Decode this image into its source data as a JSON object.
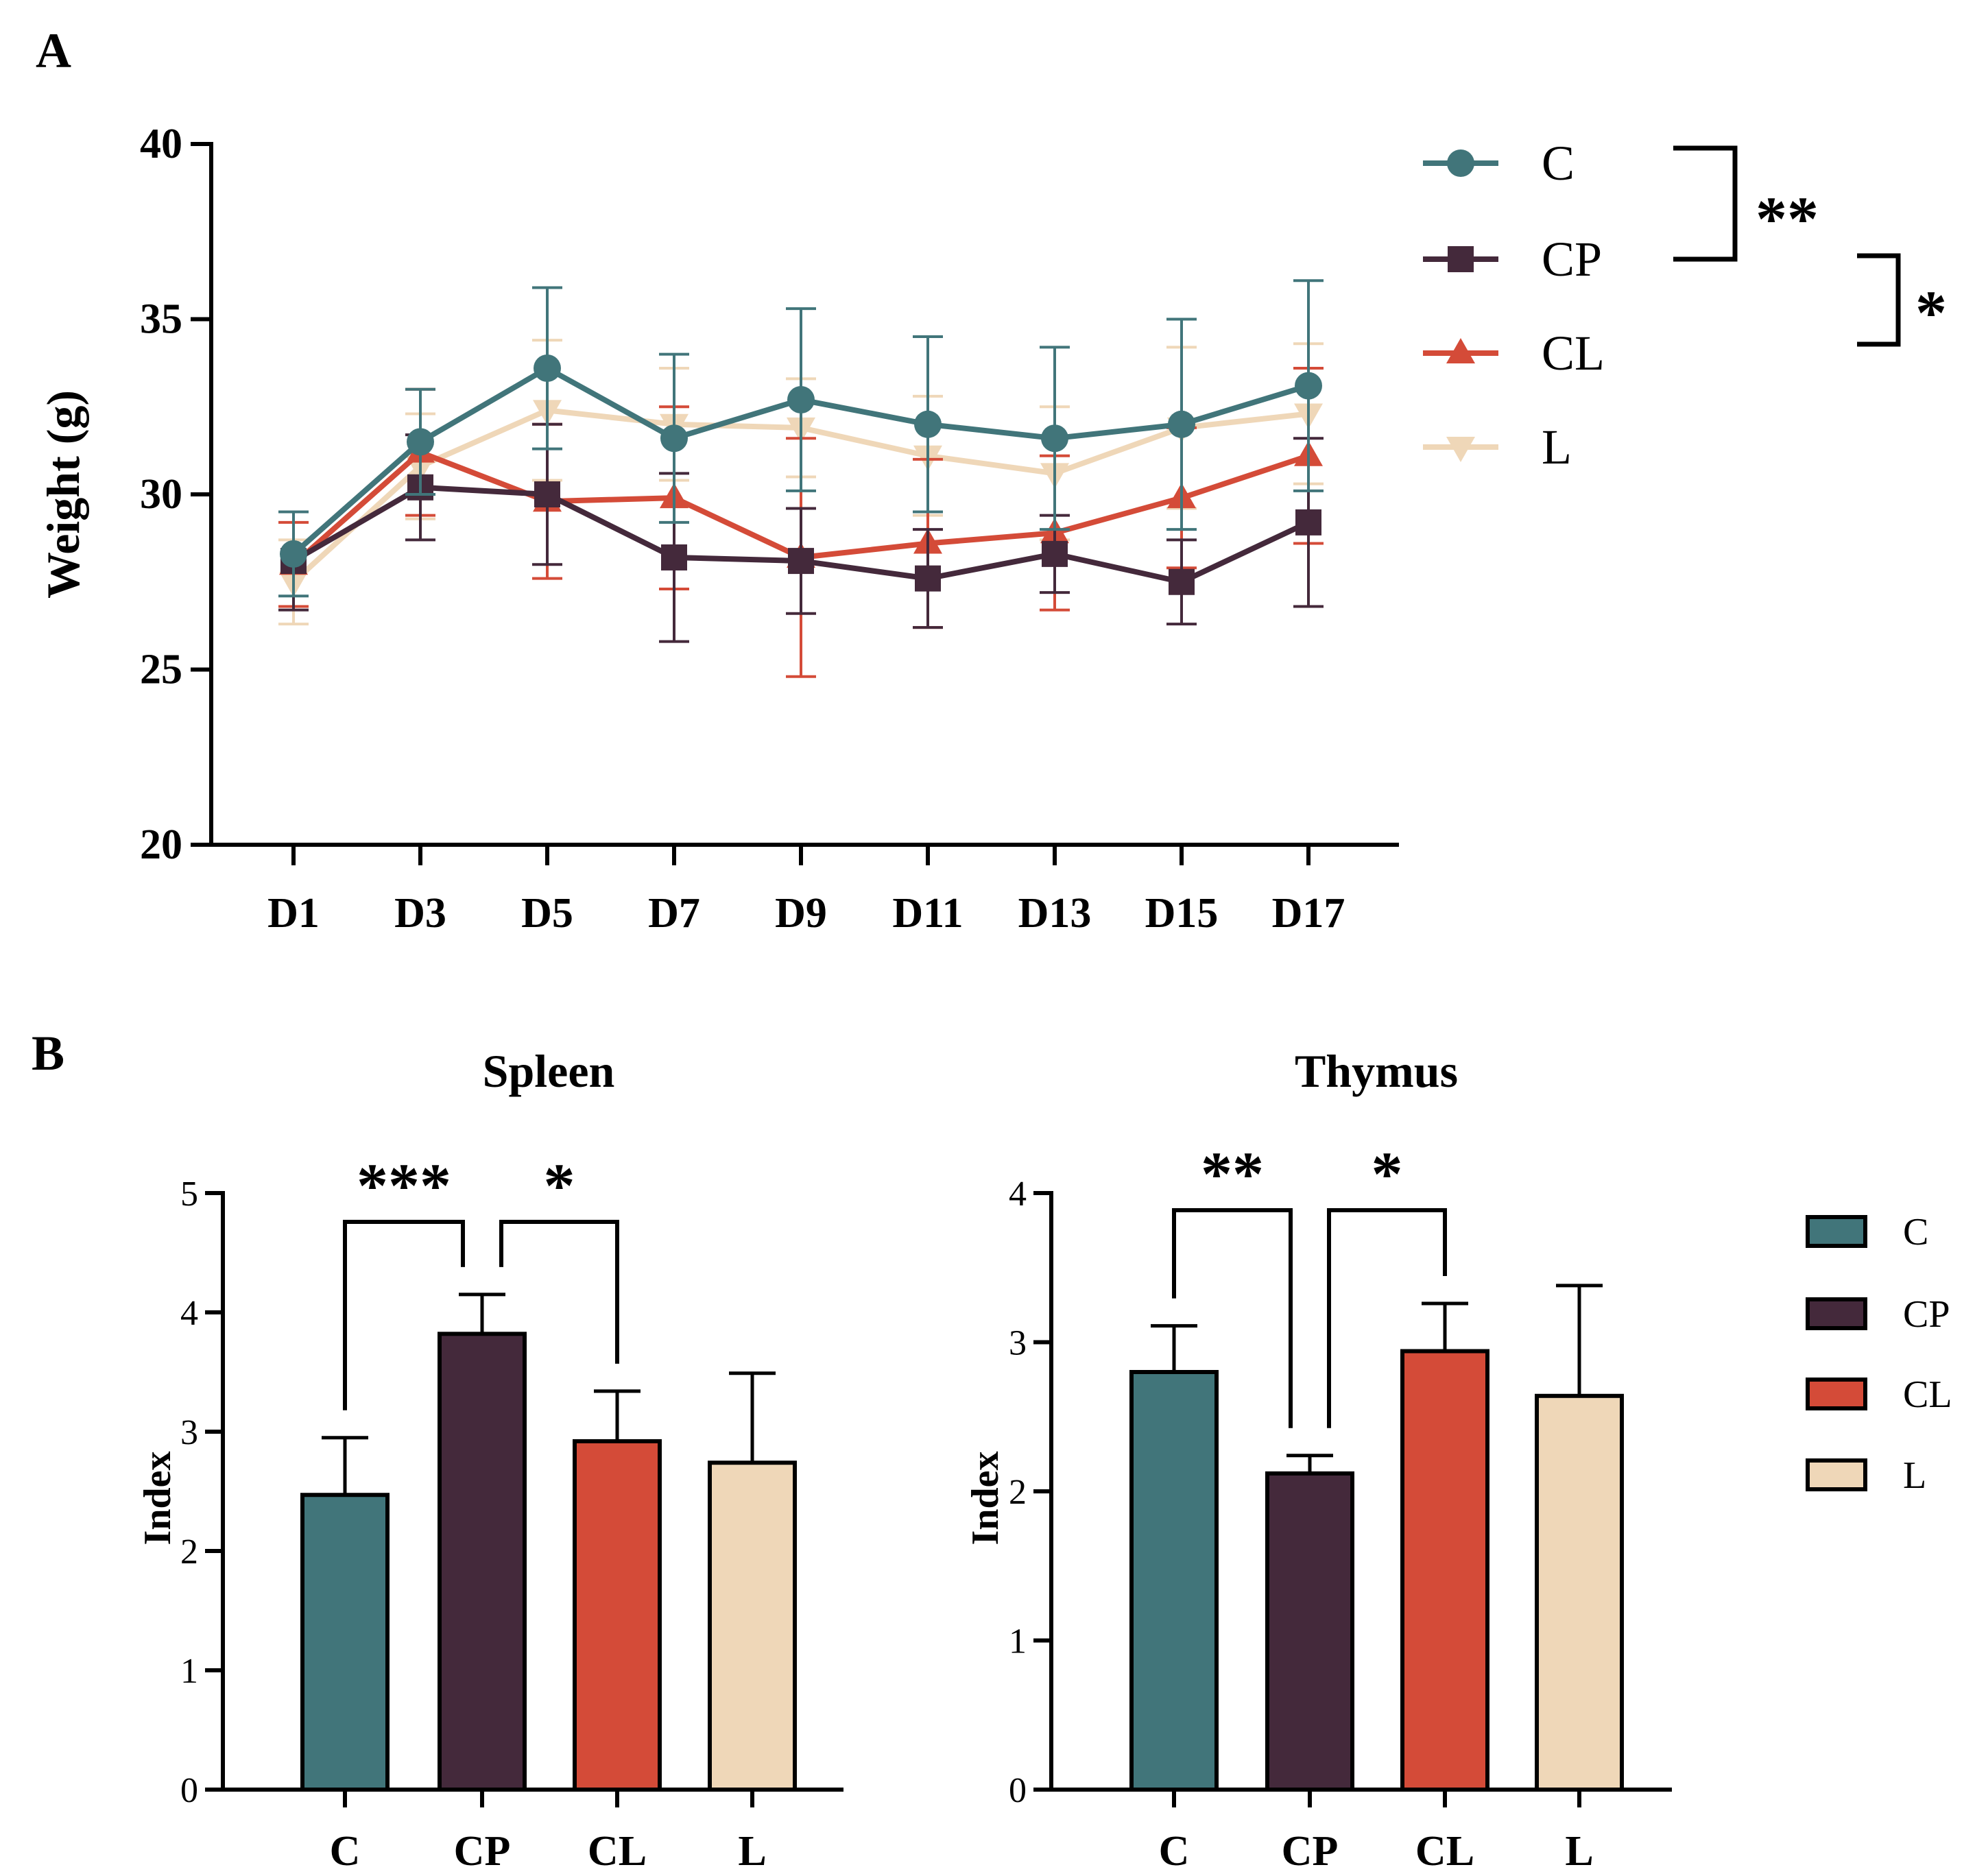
{
  "colors": {
    "C": "#41757a",
    "CP": "#44293b",
    "CL": "#d44b38",
    "L": "#efd7b8",
    "axis": "#000000"
  },
  "panels": {
    "a": "A",
    "b": "B"
  },
  "chart_data": [
    {
      "type": "line",
      "ylabel": "Weight (g)",
      "xlabel": "",
      "ylim": [
        20,
        40
      ],
      "yticks": [
        20,
        25,
        30,
        35,
        40
      ],
      "categories": [
        "D1",
        "D3",
        "D5",
        "D7",
        "D9",
        "D11",
        "D13",
        "D15",
        "D17"
      ],
      "series": [
        {
          "name": "C",
          "marker": "circle",
          "values": [
            28.3,
            31.5,
            33.6,
            31.6,
            32.7,
            32.0,
            31.6,
            32.0,
            33.1
          ],
          "err": [
            1.2,
            1.5,
            2.3,
            2.4,
            2.6,
            2.5,
            2.6,
            3.0,
            3.0
          ]
        },
        {
          "name": "CP",
          "marker": "square",
          "values": [
            28.1,
            30.2,
            30.0,
            28.2,
            28.1,
            27.6,
            28.3,
            27.5,
            29.2
          ],
          "err": [
            1.4,
            1.5,
            2.0,
            2.4,
            1.5,
            1.4,
            1.1,
            1.2,
            2.4
          ]
        },
        {
          "name": "CL",
          "marker": "triangle-up",
          "values": [
            28.0,
            31.2,
            29.8,
            29.9,
            28.2,
            28.6,
            28.9,
            29.9,
            31.1
          ],
          "err": [
            1.2,
            1.8,
            2.2,
            2.6,
            3.4,
            2.4,
            2.2,
            2.0,
            2.5
          ]
        },
        {
          "name": "L",
          "marker": "triangle-down",
          "values": [
            27.5,
            30.8,
            32.4,
            32.0,
            31.9,
            31.1,
            30.6,
            31.9,
            32.3
          ],
          "err": [
            1.2,
            1.5,
            2.0,
            1.6,
            1.4,
            1.7,
            1.9,
            2.3,
            2.0
          ]
        }
      ],
      "legend_position": "right",
      "significance": [
        {
          "groups": [
            "C",
            "CP"
          ],
          "label": "**"
        },
        {
          "groups": [
            "CP",
            "CL"
          ],
          "label": "*"
        }
      ]
    },
    {
      "type": "bar",
      "title": "Spleen",
      "ylabel": "Index",
      "ylim": [
        0,
        5
      ],
      "yticks": [
        0,
        1,
        2,
        3,
        4,
        5
      ],
      "categories": [
        "C",
        "CP",
        "CL",
        "L"
      ],
      "values": [
        2.47,
        3.82,
        2.92,
        2.74
      ],
      "err": [
        0.48,
        0.33,
        0.42,
        0.75
      ],
      "significance": [
        {
          "from": "C",
          "to": "CP",
          "label": "***"
        },
        {
          "from": "CP",
          "to": "CL",
          "label": "*"
        }
      ]
    },
    {
      "type": "bar",
      "title": "Thymus",
      "ylabel": "Index",
      "ylim": [
        0,
        4
      ],
      "yticks": [
        0,
        1,
        2,
        3,
        4
      ],
      "categories": [
        "C",
        "CP",
        "CL",
        "L"
      ],
      "values": [
        2.8,
        2.12,
        2.94,
        2.64
      ],
      "err": [
        0.31,
        0.12,
        0.32,
        0.74
      ],
      "significance": [
        {
          "from": "C",
          "to": "CP",
          "label": "**"
        },
        {
          "from": "CP",
          "to": "CL",
          "label": "*"
        }
      ],
      "legend": [
        "C",
        "CP",
        "CL",
        "L"
      ],
      "legend_position": "right"
    }
  ]
}
